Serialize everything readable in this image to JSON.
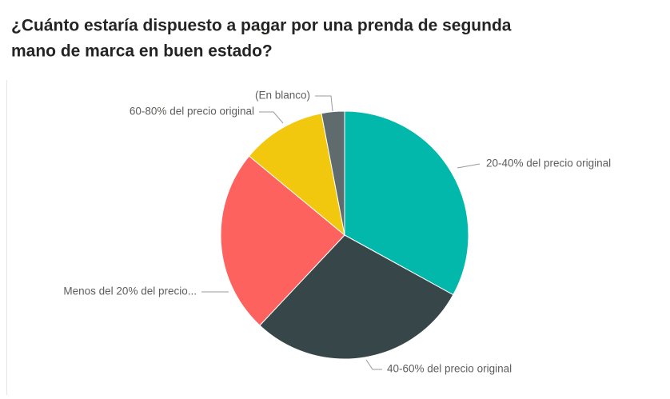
{
  "chart_data": {
    "type": "pie",
    "title": [
      "¿Cuánto estaría dispuesto a pagar por una prenda de segunda",
      "mano de marca en buen estado?"
    ],
    "categories": [
      "20-40% del precio original",
      "40-60% del precio original",
      "Menos del 20% del precio...",
      "60-80% del precio original",
      "(En blanco)"
    ],
    "values": [
      33,
      29,
      24,
      11,
      3
    ],
    "colors": [
      "#01B8AA",
      "#374649",
      "#FD625E",
      "#F2C80F",
      "#5F6B6D"
    ]
  }
}
